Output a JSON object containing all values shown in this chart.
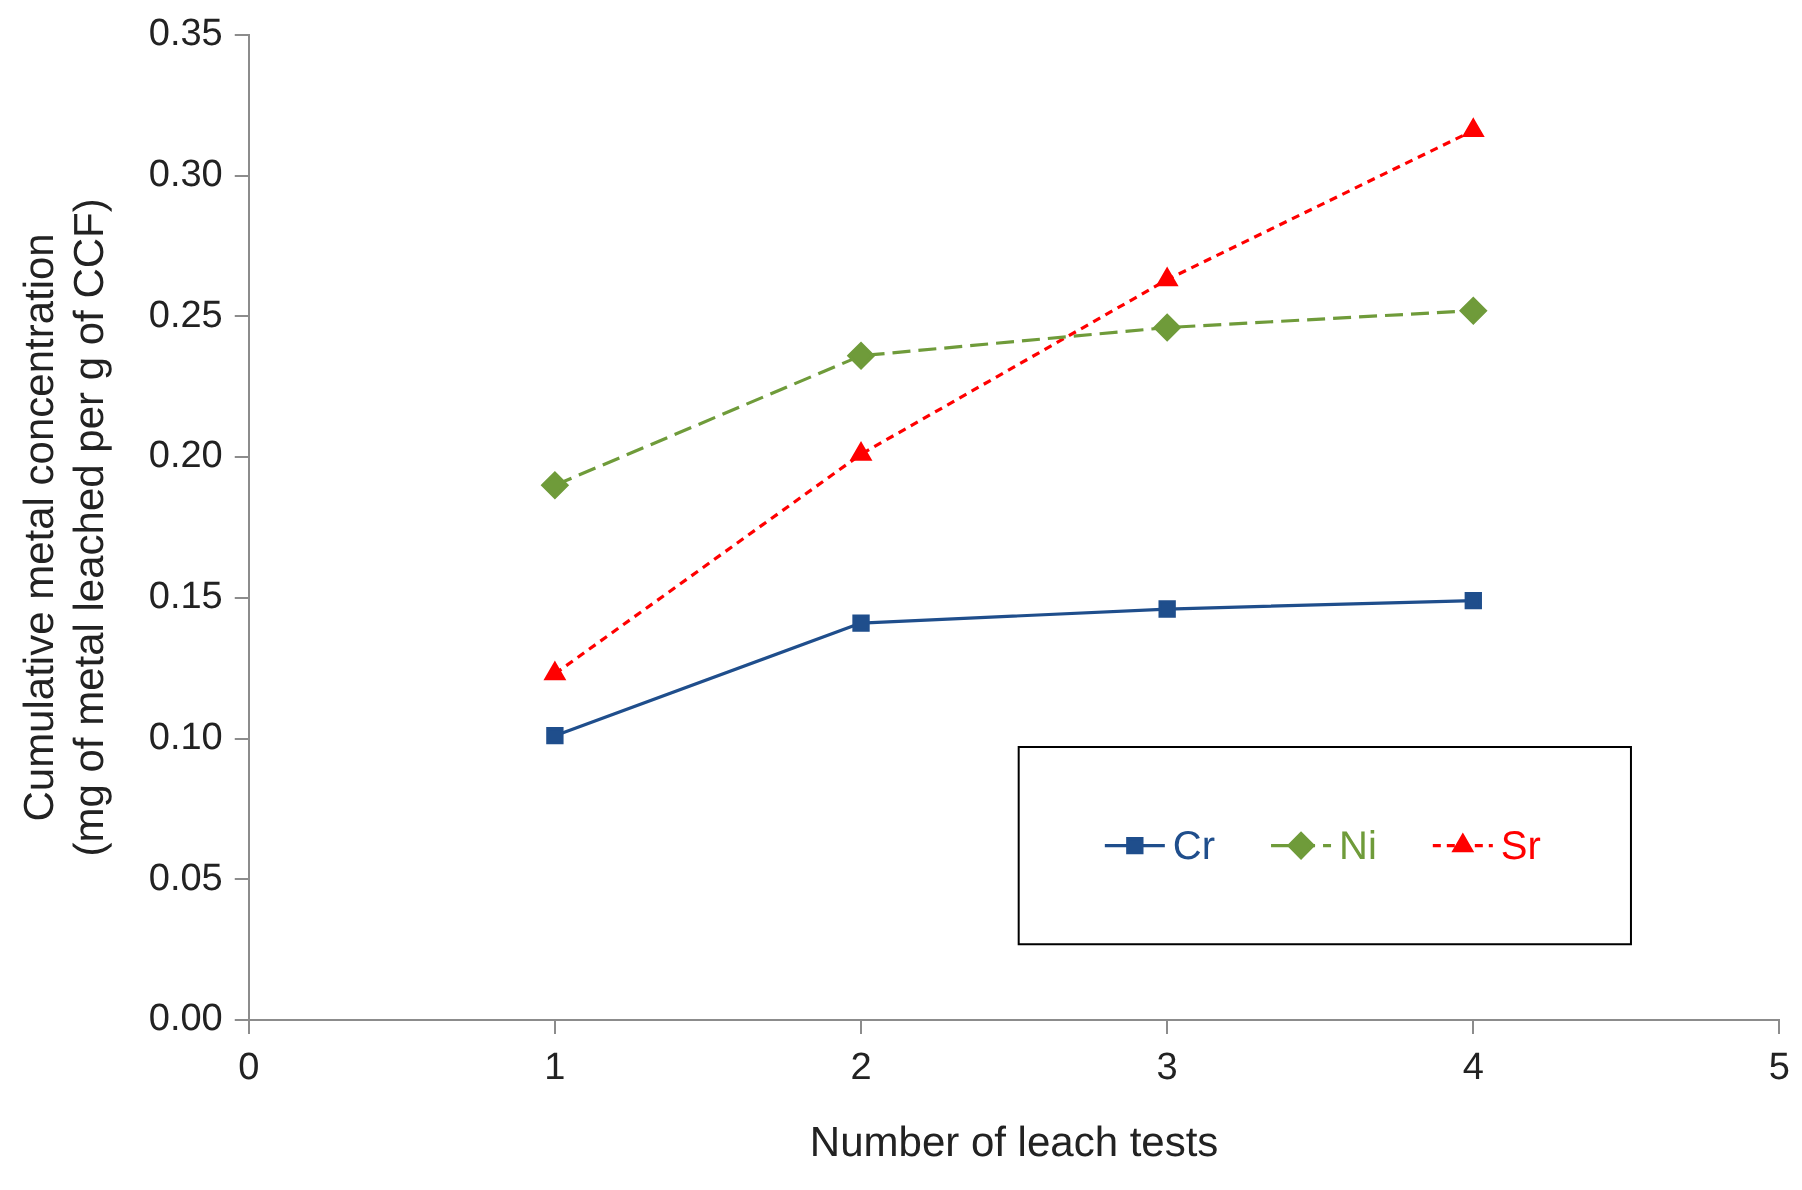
{
  "chart_data": {
    "type": "line",
    "xlabel": "Number of leach tests",
    "ylabel": "Cumulative metal concentration\n(mg of metal leached per g of CCF)",
    "x": [
      1,
      2,
      3,
      4
    ],
    "series": [
      {
        "name": "Cr",
        "color": "#1f4e8c",
        "values": [
          0.101,
          0.141,
          0.146,
          0.149
        ],
        "marker": "square",
        "line_style": "solid"
      },
      {
        "name": "Ni",
        "color": "#6f9b3a",
        "values": [
          0.19,
          0.236,
          0.246,
          0.252
        ],
        "marker": "diamond",
        "line_style": "dashed"
      },
      {
        "name": "Sr",
        "color": "#ff0000",
        "values": [
          0.123,
          0.201,
          0.263,
          0.316
        ],
        "marker": "triangle",
        "line_style": "dotted"
      }
    ],
    "xlim": [
      0,
      5
    ],
    "xticks": [
      0,
      1,
      2,
      3,
      4,
      5
    ],
    "ylim": [
      0,
      0.35
    ],
    "yticks": [
      {
        "value": 0,
        "label": "0.00"
      },
      {
        "value": 0.05,
        "label": "0.05"
      },
      {
        "value": 0.1,
        "label": "0.10"
      },
      {
        "value": 0.15,
        "label": "0.15"
      },
      {
        "value": 0.2,
        "label": "0.20"
      },
      {
        "value": 0.25,
        "label": "0.25"
      },
      {
        "value": 0.3,
        "label": "0.30"
      },
      {
        "value": 0.35,
        "label": "0.35"
      }
    ],
    "grid": false,
    "legend": "bottom right"
  }
}
